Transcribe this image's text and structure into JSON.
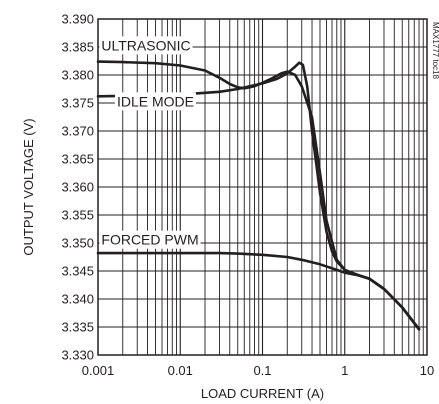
{
  "chart_data": {
    "type": "line",
    "title": "",
    "xlabel": "LOAD CURRENT (A)",
    "ylabel": "OUTPUT VOLTAGE (V)",
    "x_scale": "log",
    "xlim": [
      0.001,
      10
    ],
    "ylim": [
      3.33,
      3.39
    ],
    "grid": true,
    "x_ticks": [
      "0.001",
      "0.01",
      "0.1",
      "1",
      "10"
    ],
    "y_ticks": [
      "3.330",
      "3.335",
      "3.340",
      "3.345",
      "3.350",
      "3.355",
      "3.360",
      "3.365",
      "3.370",
      "3.375",
      "3.380",
      "3.385",
      "3.390"
    ],
    "series": [
      {
        "name": "ULTRASONIC",
        "x": [
          0.001,
          0.002,
          0.005,
          0.01,
          0.02,
          0.03,
          0.04,
          0.05,
          0.06,
          0.08,
          0.1,
          0.13,
          0.17,
          0.2,
          0.25,
          0.3,
          0.4,
          0.5,
          0.6,
          0.8,
          1.0,
          1.5,
          2,
          3,
          5,
          8
        ],
        "y": [
          3.3824,
          3.3823,
          3.3821,
          3.3817,
          3.3808,
          3.3795,
          3.3784,
          3.3778,
          3.3776,
          3.378,
          3.3786,
          3.3794,
          3.3803,
          3.3806,
          3.38,
          3.378,
          3.3725,
          3.3625,
          3.354,
          3.347,
          3.3452,
          3.3442,
          3.3436,
          3.3418,
          3.3385,
          3.3346
        ]
      },
      {
        "name": "IDLE MODE",
        "x": [
          0.001,
          0.003,
          0.01,
          0.03,
          0.05,
          0.1,
          0.15,
          0.2,
          0.25,
          0.28,
          0.31,
          0.35,
          0.4,
          0.5,
          0.6,
          0.7,
          0.8,
          1.0,
          1.3,
          1.5,
          2,
          3,
          5,
          8
        ],
        "y": [
          3.3762,
          3.3763,
          3.3765,
          3.377,
          3.3775,
          3.3785,
          3.3793,
          3.3803,
          3.3815,
          3.3822,
          3.3818,
          3.378,
          3.37,
          3.359,
          3.352,
          3.3485,
          3.3467,
          3.3452,
          3.3445,
          3.3442,
          3.3436,
          3.3418,
          3.3385,
          3.3346
        ]
      },
      {
        "name": "FORCED PWM",
        "x": [
          0.001,
          0.003,
          0.01,
          0.03,
          0.05,
          0.1,
          0.2,
          0.3,
          0.5,
          0.8,
          1.0,
          1.5,
          2,
          3,
          5,
          8
        ],
        "y": [
          3.3482,
          3.3482,
          3.3482,
          3.3482,
          3.3481,
          3.3479,
          3.3475,
          3.347,
          3.3462,
          3.3452,
          3.3447,
          3.3442,
          3.3436,
          3.3418,
          3.3385,
          3.3346
        ]
      }
    ],
    "annotations": [
      {
        "text": "ULTRASONIC",
        "x": 0.0011,
        "y": 3.3844
      },
      {
        "text": "IDLE MODE",
        "x": 0.0017,
        "y": 3.3744
      },
      {
        "text": "FORCED PWM",
        "x": 0.0011,
        "y": 3.3497
      }
    ],
    "side_note": "MAX1777 toc18"
  }
}
